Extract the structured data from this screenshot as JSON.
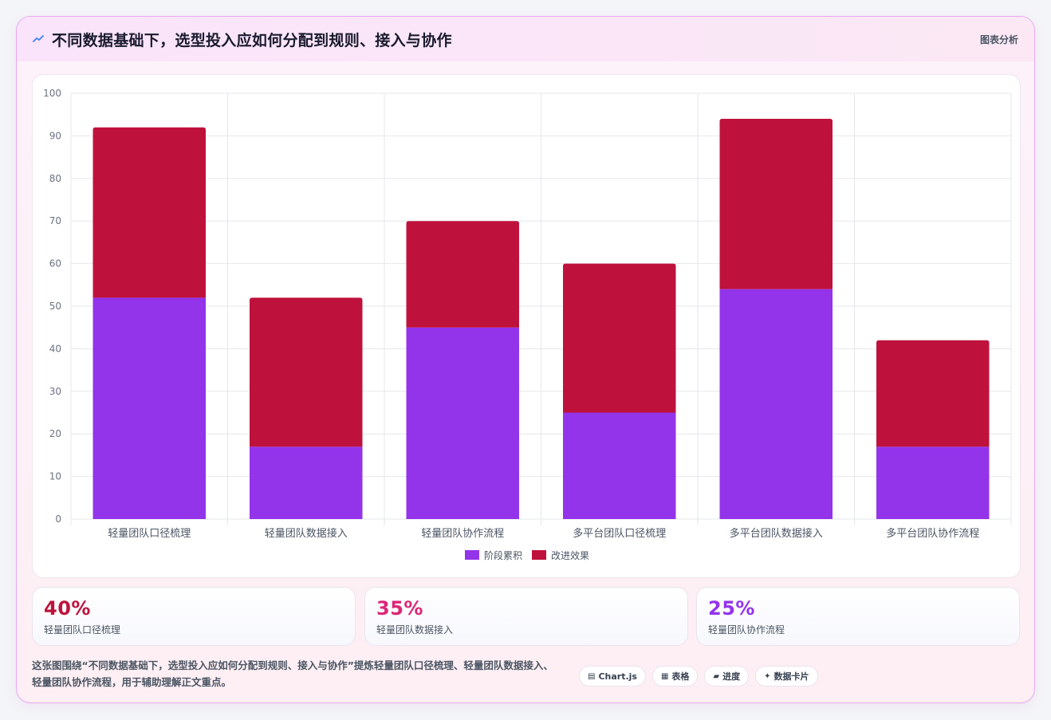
{
  "header": {
    "title": "不同数据基础下，选型投入应如何分配到规则、接入与协作",
    "badge": "图表分析"
  },
  "chart_data": {
    "type": "bar",
    "stacked": true,
    "categories": [
      "轻量团队口径梳理",
      "轻量团队数据接入",
      "轻量团队协作流程",
      "多平台团队口径梳理",
      "多平台团队数据接入",
      "多平台团队协作流程"
    ],
    "series": [
      {
        "name": "阶段累积",
        "color": "#9333ea",
        "values": [
          52,
          17,
          45,
          25,
          54,
          17
        ]
      },
      {
        "name": "改进效果",
        "color": "#be123c",
        "values": [
          40,
          35,
          25,
          35,
          40,
          25
        ]
      }
    ],
    "ylim": [
      0,
      100
    ],
    "yticks": [
      0,
      10,
      20,
      30,
      40,
      50,
      60,
      70,
      80,
      90,
      100
    ],
    "grid": true,
    "legend": "bottom"
  },
  "stats": [
    {
      "value": "40%",
      "label": "轻量团队口径梳理",
      "color": "#be123c"
    },
    {
      "value": "35%",
      "label": "轻量团队数据接入",
      "color": "#db2777"
    },
    {
      "value": "25%",
      "label": "轻量团队协作流程",
      "color": "#9333ea"
    }
  ],
  "footer": {
    "text": "这张图围绕“不同数据基础下，选型投入应如何分配到规则、接入与协作”提炼轻量团队口径梳理、轻量团队数据接入、轻量团队协作流程，用于辅助理解正文重点。",
    "chips": [
      {
        "icon": "chart-icon",
        "glyph": "▤",
        "label": "Chart.js"
      },
      {
        "icon": "table-icon",
        "glyph": "▦",
        "label": "表格"
      },
      {
        "icon": "progress-icon",
        "glyph": "▰",
        "label": "进度"
      },
      {
        "icon": "sparkle-icon",
        "glyph": "✦",
        "label": "数据卡片"
      }
    ]
  }
}
